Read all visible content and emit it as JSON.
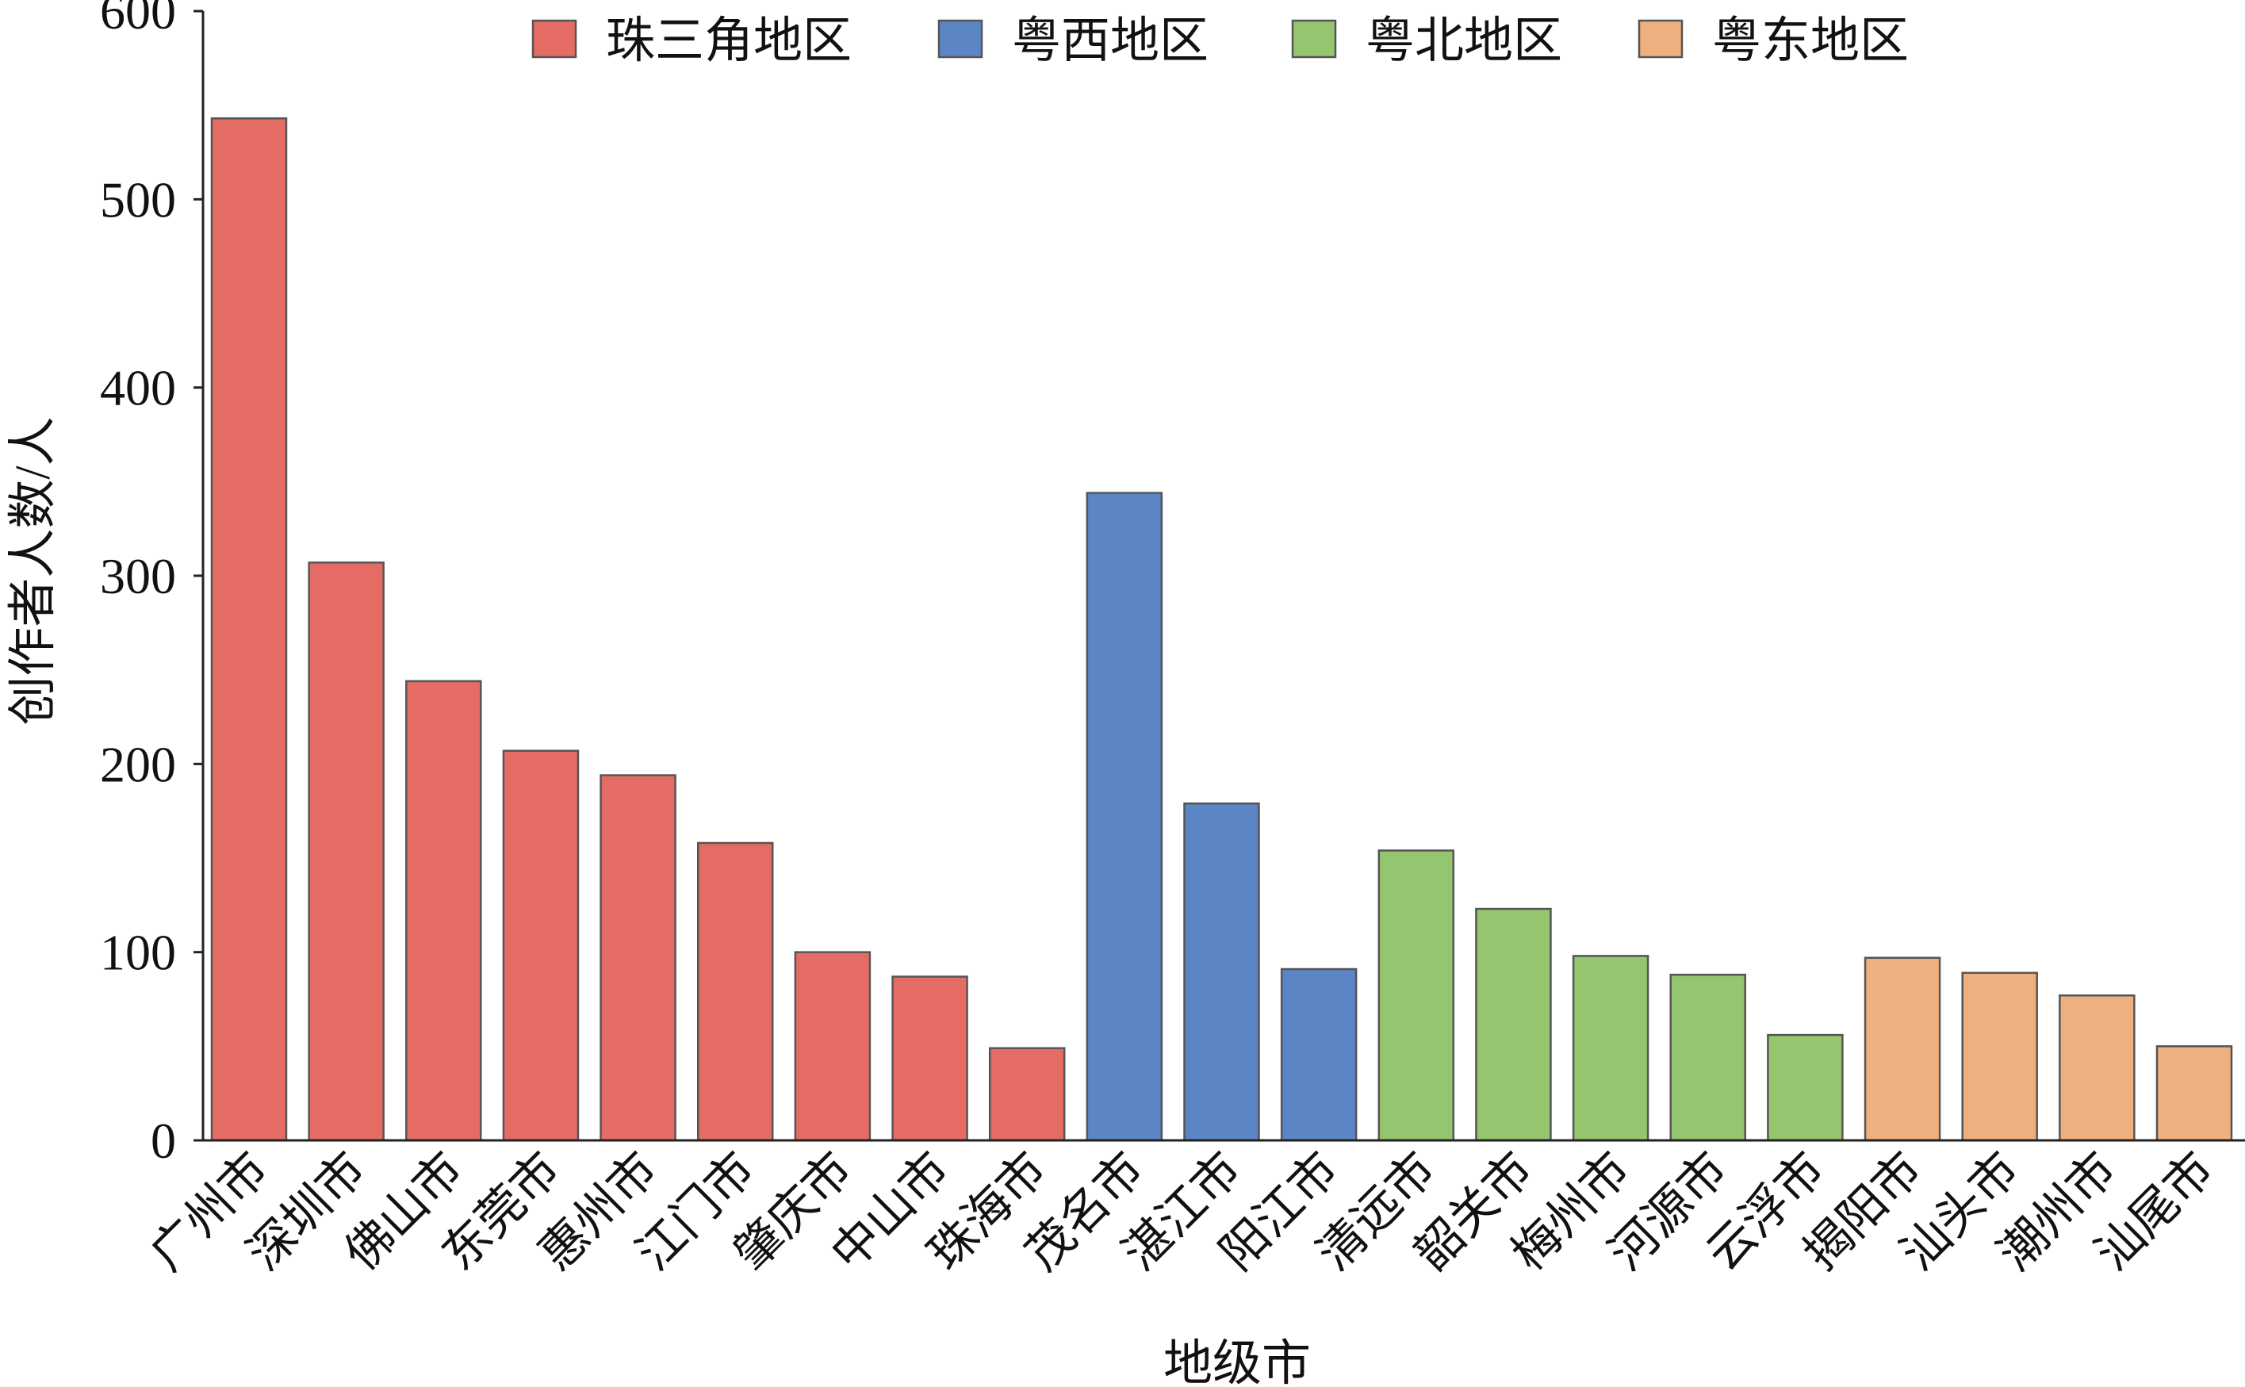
{
  "chart_data": {
    "type": "bar",
    "title": "",
    "xlabel": "地级市",
    "ylabel": "创作者人数/人",
    "ylim": [
      0,
      600
    ],
    "yticks": [
      0,
      100,
      200,
      300,
      400,
      500,
      600
    ],
    "grid": false,
    "legend_position": "top",
    "legend": [
      {
        "name": "珠三角地区",
        "color": "#E46C64"
      },
      {
        "name": "粤西地区",
        "color": "#5B85C5"
      },
      {
        "name": "粤北地区",
        "color": "#94C56F"
      },
      {
        "name": "粤东地区",
        "color": "#EFB07F"
      }
    ],
    "categories": [
      "广州市",
      "深圳市",
      "佛山市",
      "东莞市",
      "惠州市",
      "江门市",
      "肇庆市",
      "中山市",
      "珠海市",
      "茂名市",
      "湛江市",
      "阳江市",
      "清远市",
      "韶关市",
      "梅州市",
      "河源市",
      "云浮市",
      "揭阳市",
      "汕头市",
      "潮州市",
      "汕尾市"
    ],
    "values": [
      543,
      307,
      244,
      207,
      194,
      158,
      100,
      87,
      49,
      344,
      179,
      91,
      154,
      123,
      98,
      88,
      56,
      97,
      89,
      77,
      50
    ],
    "groups": [
      0,
      0,
      0,
      0,
      0,
      0,
      0,
      0,
      0,
      1,
      1,
      1,
      2,
      2,
      2,
      2,
      2,
      3,
      3,
      3,
      3
    ]
  }
}
